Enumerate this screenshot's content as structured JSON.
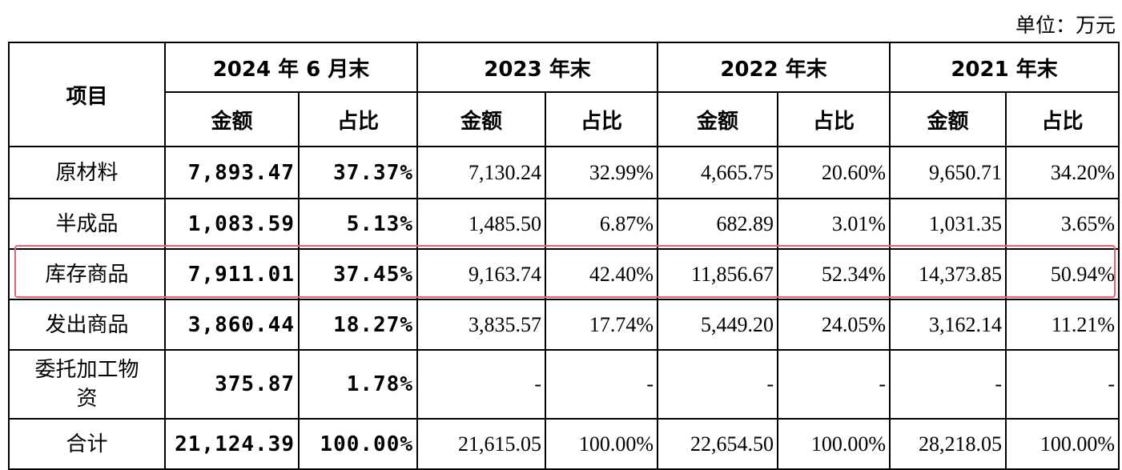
{
  "unit": "单位：万元",
  "table": {
    "corner": "项目",
    "periods": [
      "2024 年 6 月末",
      "2023 年末",
      "2022 年末",
      "2021 年末"
    ],
    "subheaders": [
      "金额",
      "占比",
      "金额",
      "占比",
      "金额",
      "占比",
      "金额",
      "占比"
    ],
    "rows": [
      {
        "label": "原材料",
        "cells": [
          "7,893.47",
          "37.37%",
          "7,130.24",
          "32.99%",
          "4,665.75",
          "20.60%",
          "9,650.71",
          "34.20%"
        ]
      },
      {
        "label": "半成品",
        "cells": [
          "1,083.59",
          "5.13%",
          "1,485.50",
          "6.87%",
          "682.89",
          "3.01%",
          "1,031.35",
          "3.65%"
        ]
      },
      {
        "label": "库存商品",
        "cells": [
          "7,911.01",
          "37.45%",
          "9,163.74",
          "42.40%",
          "11,856.67",
          "52.34%",
          "14,373.85",
          "50.94%"
        ]
      },
      {
        "label": "发出商品",
        "cells": [
          "3,860.44",
          "18.27%",
          "3,835.57",
          "17.74%",
          "5,449.20",
          "24.05%",
          "3,162.14",
          "11.21%"
        ]
      },
      {
        "label": "委托加工物资",
        "cells": [
          "375.87",
          "1.78%",
          "-",
          "-",
          "-",
          "-",
          "-",
          "-"
        ]
      },
      {
        "label": "合计",
        "cells": [
          "21,124.39",
          "100.00%",
          "21,615.05",
          "100.00%",
          "22,654.50",
          "100.00%",
          "28,218.05",
          "100.00%"
        ]
      }
    ]
  }
}
